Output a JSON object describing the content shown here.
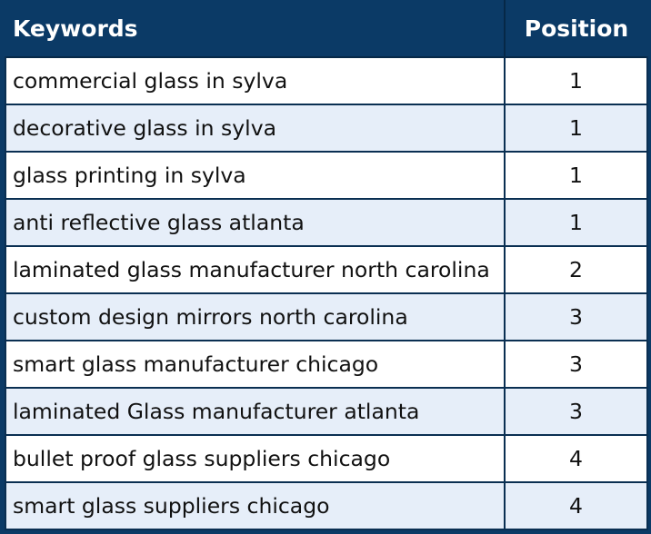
{
  "table": {
    "headers": {
      "keywords": "Keywords",
      "position": "Position"
    },
    "rows": [
      {
        "keyword": "commercial glass in sylva",
        "position": "1"
      },
      {
        "keyword": "decorative glass in sylva",
        "position": "1"
      },
      {
        "keyword": "glass printing in sylva",
        "position": "1"
      },
      {
        "keyword": "anti reflective glass atlanta",
        "position": "1"
      },
      {
        "keyword": "laminated glass manufacturer north carolina",
        "position": "2"
      },
      {
        "keyword": "custom design mirrors north carolina",
        "position": "3"
      },
      {
        "keyword": "smart glass manufacturer chicago",
        "position": "3"
      },
      {
        "keyword": "laminated Glass manufacturer atlanta",
        "position": "3"
      },
      {
        "keyword": "bullet proof glass suppliers chicago",
        "position": "4"
      },
      {
        "keyword": "smart glass suppliers chicago",
        "position": "4"
      }
    ]
  },
  "colors": {
    "header_bg": "#0b3a66",
    "header_text": "#ffffff",
    "row_alt_bg": "#e6eef9",
    "row_bg": "#ffffff",
    "border": "#0a2f52"
  }
}
